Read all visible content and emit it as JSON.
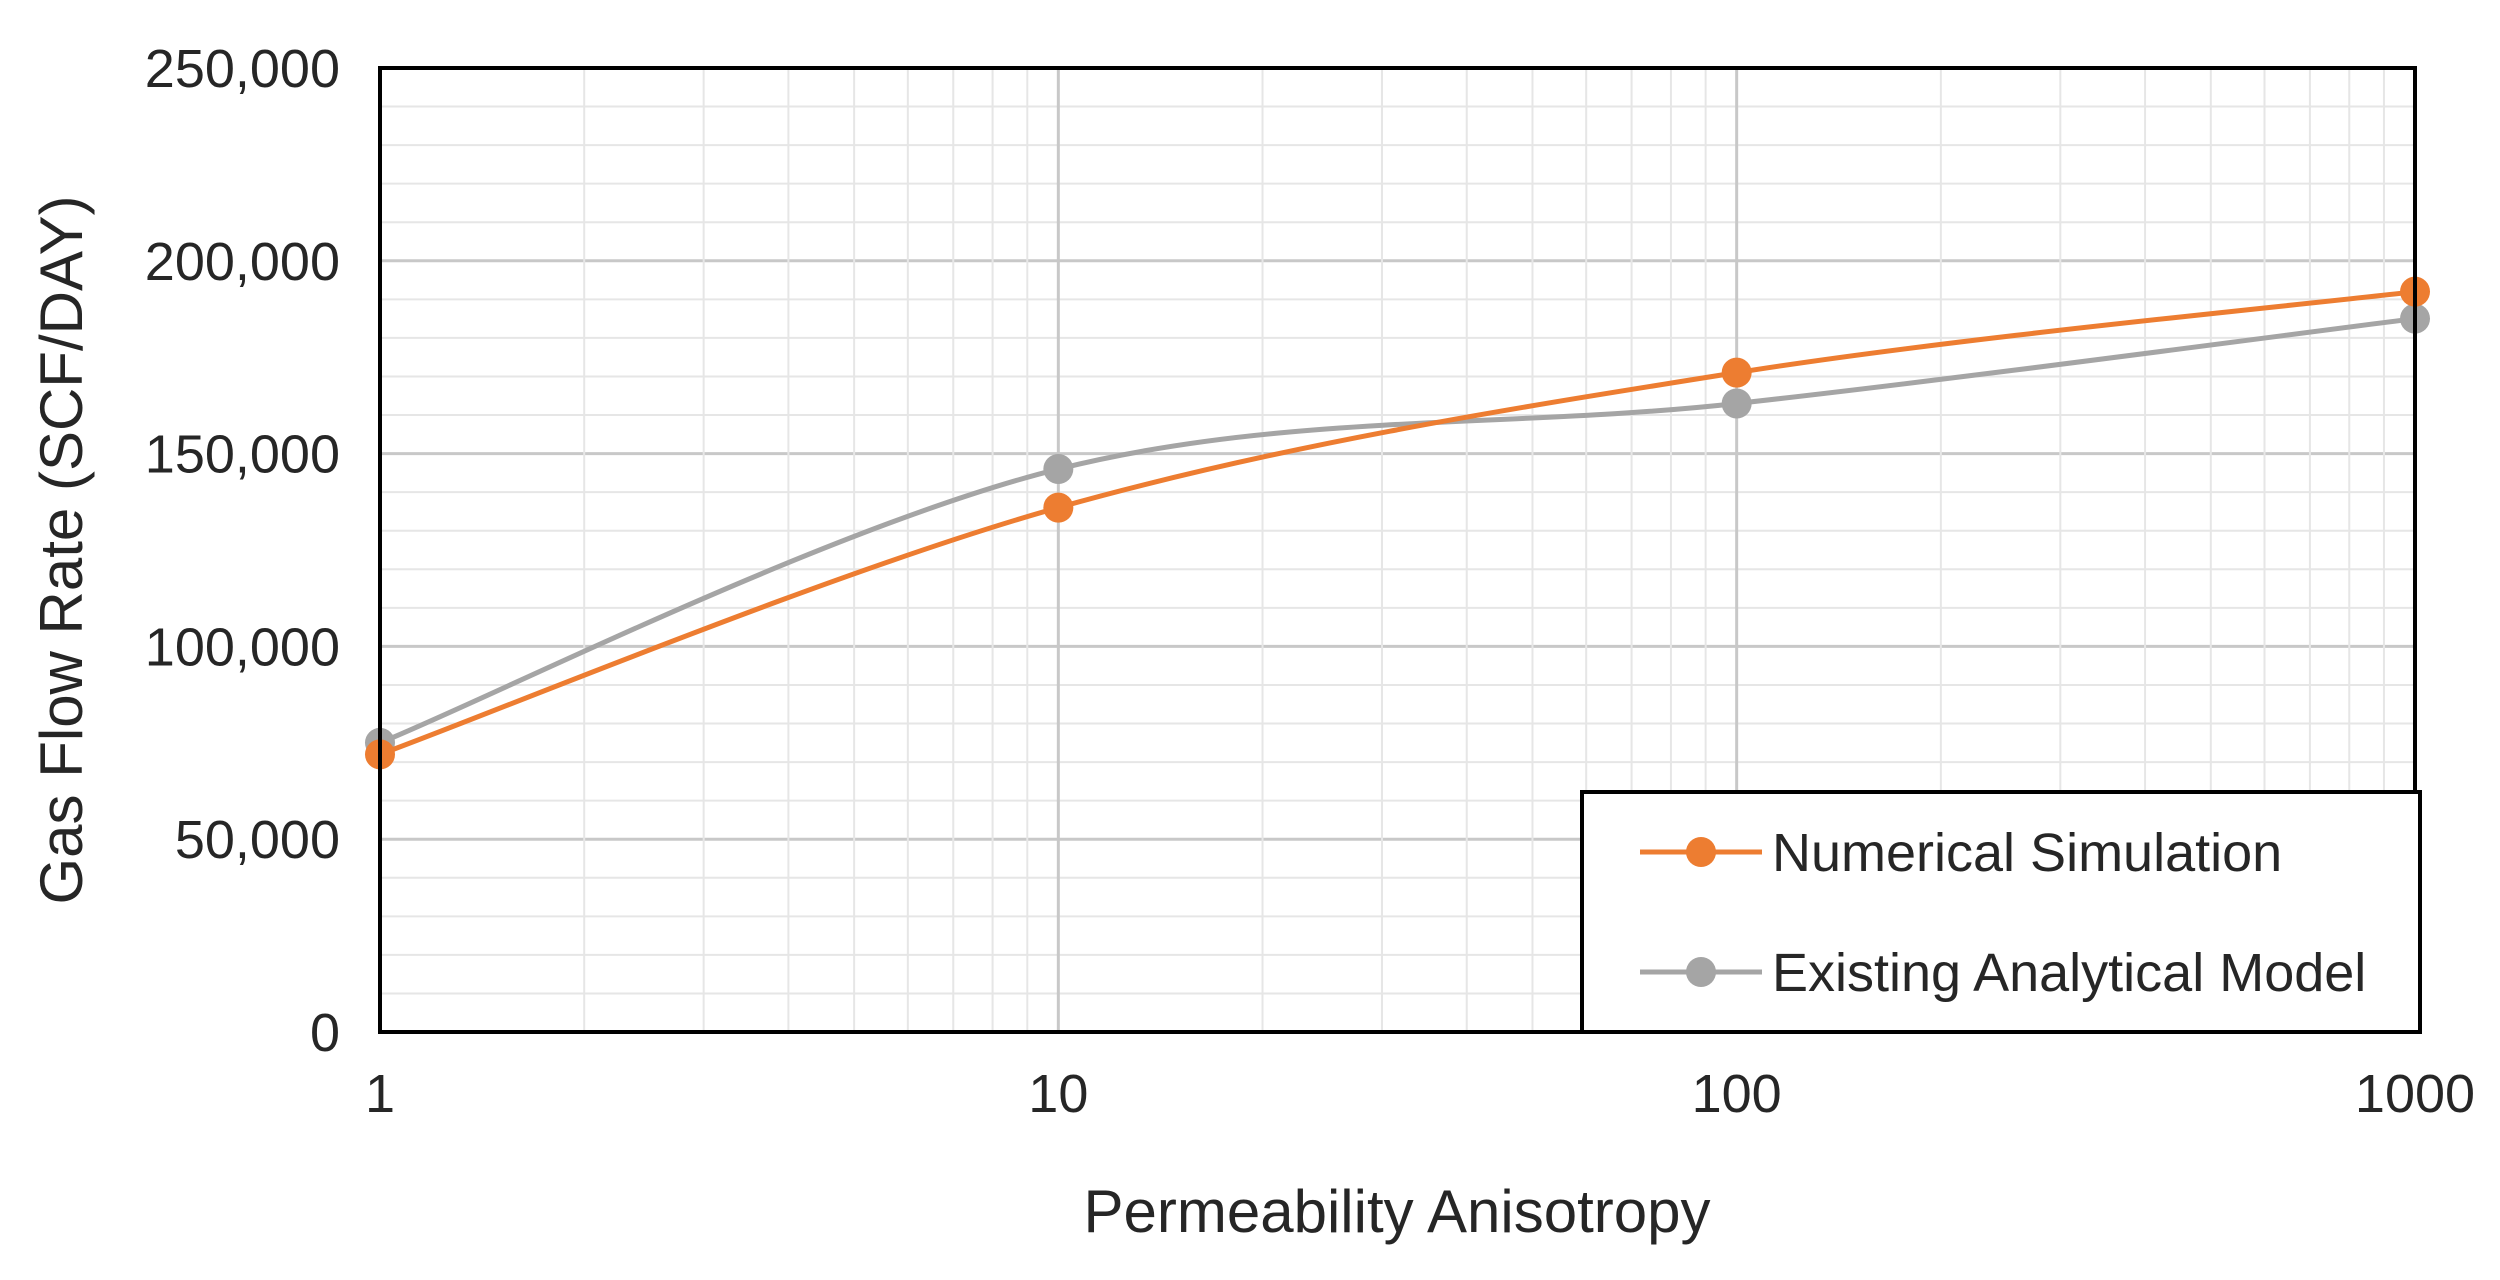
{
  "chart_data": {
    "type": "line",
    "title": "",
    "xlabel": "Permeability Anisotropy",
    "ylabel": "Gas Flow Rate (SCF/DAY)",
    "x_scale": "log",
    "x": [
      1,
      10,
      100,
      1000
    ],
    "xlim": [
      1,
      1000
    ],
    "x_ticks": [
      1,
      10,
      100,
      1000
    ],
    "x_tick_labels": [
      "1",
      "10",
      "100",
      "1000"
    ],
    "ylim": [
      0,
      250000
    ],
    "y_ticks": [
      0,
      50000,
      100000,
      150000,
      200000,
      250000
    ],
    "y_tick_labels": [
      "0",
      "50,000",
      "100,000",
      "150,000",
      "200,000",
      "250,000"
    ],
    "grid": true,
    "legend_position": "bottom-right",
    "series": [
      {
        "name": "Numerical Simulation",
        "color": "#ED7D31",
        "values": [
          72000,
          136000,
          171000,
          192000
        ]
      },
      {
        "name": "Existing Analytical Model",
        "color": "#A5A5A5",
        "values": [
          75000,
          146000,
          163000,
          185000
        ]
      }
    ]
  }
}
